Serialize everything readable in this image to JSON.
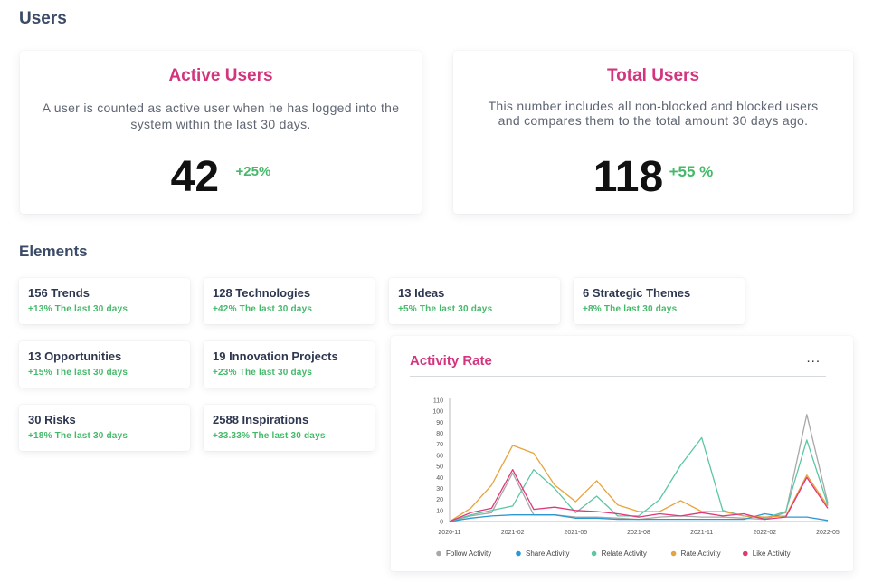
{
  "users_section": {
    "title": "Users"
  },
  "active_users": {
    "title": "Active Users",
    "description": "A user is counted as active user when he has logged into the system within the last 30 days.",
    "value": "42",
    "change": "+25%"
  },
  "total_users": {
    "title": "Total Users",
    "description": "This number includes all non-blocked and blocked users and compares them to the total amount 30 days ago.",
    "value": "118",
    "change": "+55 %"
  },
  "elements_section": {
    "title": "Elements"
  },
  "elements": [
    {
      "name": "156 Trends",
      "change": "+13% The last 30 days"
    },
    {
      "name": "128 Technologies",
      "change": "+42% The last 30 days"
    },
    {
      "name": "13 Ideas",
      "change": "+5% The last 30 days"
    },
    {
      "name": "6 Strategic Themes",
      "change": "+8% The last 30 days"
    },
    {
      "name": "13 Opportunities",
      "change": "+15% The last 30 days"
    },
    {
      "name": "19 Innovation Projects",
      "change": "+23% The last 30 days"
    },
    {
      "name": "30 Risks",
      "change": "+18% The last 30 days"
    },
    {
      "name": "2588 Inspirations",
      "change": "+33.33% The last 30 days"
    }
  ],
  "activity_chart": {
    "title": "Activity Rate",
    "menu_icon": "more-horizontal-icon",
    "menu_label": "..."
  },
  "chart_data": {
    "type": "line",
    "title": "Activity Rate",
    "xlabel": "",
    "ylabel": "",
    "ylim": [
      0,
      110
    ],
    "y_ticks": [
      0,
      10,
      20,
      30,
      40,
      50,
      60,
      70,
      80,
      90,
      100,
      110
    ],
    "x_tick_labels": [
      "2020-11",
      "2021-02",
      "2021-05",
      "2021-08",
      "2021-11",
      "2022-02",
      "2022-05"
    ],
    "x": [
      "2020-11",
      "2020-12",
      "2021-01",
      "2021-02",
      "2021-03",
      "2021-04",
      "2021-05",
      "2021-06",
      "2021-07",
      "2021-08",
      "2021-09",
      "2021-10",
      "2021-11",
      "2021-12",
      "2022-01",
      "2022-02",
      "2022-03",
      "2022-04",
      "2022-05"
    ],
    "grid": false,
    "legend_position": "bottom",
    "series": [
      {
        "name": "Follow Activity",
        "color": "#a8a8a8",
        "values": [
          0,
          5,
          8,
          44,
          6,
          6,
          4,
          4,
          3,
          2,
          4,
          5,
          4,
          4,
          3,
          2,
          8,
          97,
          17
        ]
      },
      {
        "name": "Share Activity",
        "color": "#2b98d4",
        "values": [
          0,
          3,
          5,
          6,
          6,
          6,
          3,
          3,
          2,
          2,
          2,
          2,
          2,
          2,
          2,
          7,
          4,
          4,
          1
        ]
      },
      {
        "name": "Relate Activity",
        "color": "#5cc6a6",
        "values": [
          0,
          6,
          10,
          14,
          47,
          30,
          8,
          23,
          5,
          5,
          20,
          51,
          76,
          10,
          5,
          3,
          9,
          74,
          15
        ]
      },
      {
        "name": "Rate Activity",
        "color": "#e8a33c",
        "values": [
          0,
          12,
          33,
          69,
          62,
          33,
          18,
          37,
          15,
          9,
          9,
          19,
          9,
          9,
          5,
          4,
          5,
          42,
          14
        ]
      },
      {
        "name": "Like Activity",
        "color": "#e0367a",
        "values": [
          0,
          8,
          12,
          47,
          11,
          13,
          10,
          9,
          7,
          4,
          7,
          5,
          8,
          5,
          7,
          2,
          4,
          40,
          12
        ]
      }
    ]
  }
}
